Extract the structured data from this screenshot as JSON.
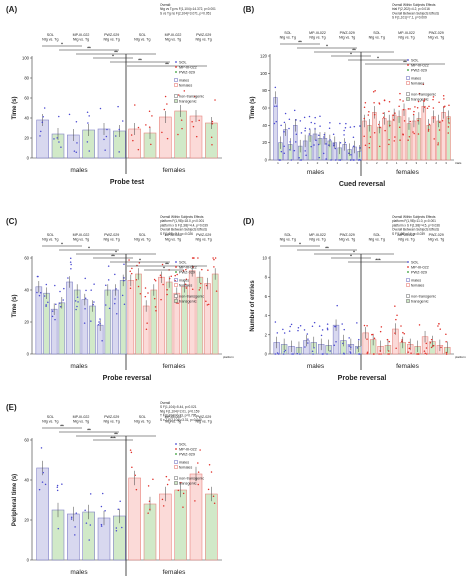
{
  "colors": {
    "males_fill": "#d6d6ef",
    "males_stroke": "#7b7bc4",
    "females_fill": "#fbd9d6",
    "females_stroke": "#e8807a",
    "transgenic_fill": "#cfe8c6",
    "point_blue": "#4a4ad0",
    "point_red": "#e0302a",
    "point_green": "#2e9a2e"
  },
  "legend": {
    "treatments": [
      "SOL",
      "MP-III-022",
      "PWZ-029"
    ],
    "sex": [
      "males",
      "females"
    ],
    "genotype": [
      "non-transgenic",
      "transgenic"
    ]
  },
  "chart_data": [
    {
      "panel": "(A)",
      "type": "bar",
      "title": "Probe test",
      "ylabel": "Time (s)",
      "ylim": [
        0,
        100
      ],
      "yticks": [
        0,
        20,
        40,
        60,
        80,
        100
      ],
      "group_labels": [
        "SOL\nNtg vs. Tg",
        "MP-III-022\nNtg vs. Tg",
        "PWZ-029\nNtg vs. Tg",
        "SOL\nNtg vs. Tg",
        "MP-III-022\nNtg vs. Tg",
        "PWZ-029\nNtg vs. Tg"
      ],
      "sex_labels": [
        "males",
        "females"
      ],
      "stats_text": [
        "Overall:",
        "Ntg vs Tg ns F(1,104)=14.372, p<0.001",
        "S vs Tg ns F(2,104)=3.071, p=0.051"
      ],
      "significance": [
        "*",
        "**",
        "**",
        "*",
        "**",
        "**"
      ],
      "series": [
        {
          "name": "non-transgenic",
          "values": [
            38,
            23,
            29,
            29,
            41,
            42
          ]
        },
        {
          "name": "transgenic",
          "values": [
            24,
            28,
            27,
            25,
            47,
            35
          ]
        }
      ]
    },
    {
      "panel": "(B)",
      "type": "bar",
      "title": "Cued reversal",
      "ylabel": "Time (s)",
      "ylim": [
        0,
        120
      ],
      "yticks": [
        0,
        20,
        40,
        60,
        80,
        100,
        120
      ],
      "xtick_labels": [
        "1",
        "2",
        "3",
        "1",
        "2",
        "3",
        "1",
        "2",
        "3",
        "1",
        "2",
        "3",
        "1",
        "2",
        "3",
        "1",
        "2",
        "3"
      ],
      "x_unit_label": "trials",
      "group_labels": [
        "SOL\nNtg vs. Tg",
        "MP-III-022\nNtg vs. Tg",
        "PWZ-029\nNtg vs. Tg",
        "SOL\nNtg vs. Tg",
        "MP-III-022\nNtg vs. Tg",
        "PWZ-029\nNtg vs. Tg"
      ],
      "sex_labels": [
        "males",
        "females"
      ],
      "stats_text": [
        "Overall Within Subjects Effects",
        "trial F(2,202)=4.2, p=0.016",
        "Overall Between Subjects Effects",
        "S F(1,101)=7.1, p=0.009"
      ],
      "significance": [
        "**",
        "*",
        "**",
        "*",
        "*",
        "**"
      ],
      "series": [
        {
          "name": "non-transgenic",
          "values": [
            72,
            35,
            40,
            22,
            30,
            25,
            20,
            18,
            15,
            45,
            55,
            48,
            52,
            58,
            45,
            62,
            50,
            55
          ]
        },
        {
          "name": "transgenic",
          "values": [
            20,
            18,
            16,
            28,
            25,
            22,
            14,
            12,
            10,
            40,
            38,
            45,
            50,
            42,
            48,
            40,
            45,
            50
          ]
        }
      ]
    },
    {
      "panel": "(C)",
      "type": "bar",
      "title": "Probe reversal",
      "ylabel": "Time (s)",
      "ylim": [
        0,
        60
      ],
      "yticks": [
        0,
        20,
        40,
        60
      ],
      "x_unit_label": "platform",
      "group_labels": [
        "SOL\nNtg vs. Tg",
        "MP-III-022\nNtg vs. Tg",
        "PWZ-029\nNtg vs. Tg",
        "SOL\nNtg vs. Tg",
        "MP-III-022\nNtg vs. Tg",
        "PWZ-029\nNtg vs. Tg"
      ],
      "sex_labels": [
        "males",
        "females"
      ],
      "stats_text": [
        "Overall Within Subjects Effects",
        "platform F(1,98)=18.0, p<0.001",
        "platform x S F(1,98)=4.4, p=0.039",
        "Overall Between Subjects Effects",
        "S F(1,98)=5.1, p=0.026"
      ],
      "significance": [
        "*",
        "*",
        "*",
        "**",
        "*",
        "**",
        "*"
      ],
      "series": [
        {
          "name": "non-transgenic",
          "values": [
            42,
            28,
            45,
            34,
            18,
            40,
            46,
            30,
            48,
            38,
            52,
            44
          ]
        },
        {
          "name": "transgenic",
          "values": [
            38,
            32,
            40,
            30,
            40,
            46,
            50,
            40,
            45,
            42,
            48,
            50
          ]
        }
      ]
    },
    {
      "panel": "(D)",
      "type": "bar",
      "title": "Probe reversal",
      "ylabel": "Number of entries",
      "ylim": [
        0,
        10
      ],
      "yticks": [
        0,
        2,
        4,
        6,
        8,
        10
      ],
      "x_unit_label": "platform",
      "group_labels": [
        "SOL\nNtg vs. Tg",
        "MP-III-022\nNtg vs. Tg",
        "PWZ-029\nNtg vs. Tg",
        "SOL\nNtg vs. Tg",
        "MP-III-022\nNtg vs. Tg",
        "PWZ-029\nNtg vs. Tg"
      ],
      "sex_labels": [
        "males",
        "females"
      ],
      "stats_text": [
        "Overall Within Subjects Effects",
        "platform F(1,98)=11.0, p=0.001",
        "platform x S F(1,98)=4.5, p=0.036",
        "Overall Between Subjects Effects",
        "S F(1,98)=4.4, p=0.039"
      ],
      "significance": [
        "*",
        "**",
        "*",
        "*",
        "***"
      ],
      "series": [
        {
          "name": "non-transgenic",
          "values": [
            1.2,
            0.8,
            1.4,
            1.0,
            3.0,
            1.0,
            2.2,
            0.8,
            2.6,
            1.0,
            1.8,
            0.9
          ]
        },
        {
          "name": "transgenic",
          "values": [
            1.0,
            0.7,
            1.2,
            0.9,
            1.4,
            0.8,
            1.5,
            0.9,
            1.2,
            0.8,
            1.3,
            0.7
          ]
        }
      ]
    },
    {
      "panel": "(E)",
      "type": "bar",
      "title": "Probe reversal",
      "ylabel": "Peripheral time (s)",
      "ylim": [
        0,
        60
      ],
      "yticks": [
        0,
        20,
        40,
        60
      ],
      "group_labels": [
        "SOL\nNtg vs. Tg",
        "MP-III-022\nNtg vs. Tg",
        "PWZ-029\nNtg vs. Tg",
        "SOL\nNtg vs. Tg",
        "MP-III-022\nNtg vs. Tg",
        "PWZ-029\nNtg vs. Tg"
      ],
      "sex_labels": [
        "males",
        "females"
      ],
      "stats_text": [
        "Overall",
        "S F(1,104)=5.44, p=0.021",
        "Ntg F(1,104)=2.01, p=0.159",
        "T F(2,104)=0.23, p=0.795",
        "S x T F(2,104)=3.31, p=0.040"
      ],
      "significance": [
        "**",
        "**",
        "**",
        "***"
      ],
      "series": [
        {
          "name": "non-transgenic",
          "values": [
            46,
            23,
            21,
            41,
            33,
            43
          ]
        },
        {
          "name": "transgenic",
          "values": [
            25,
            24,
            22,
            28,
            35,
            33
          ]
        }
      ]
    }
  ]
}
